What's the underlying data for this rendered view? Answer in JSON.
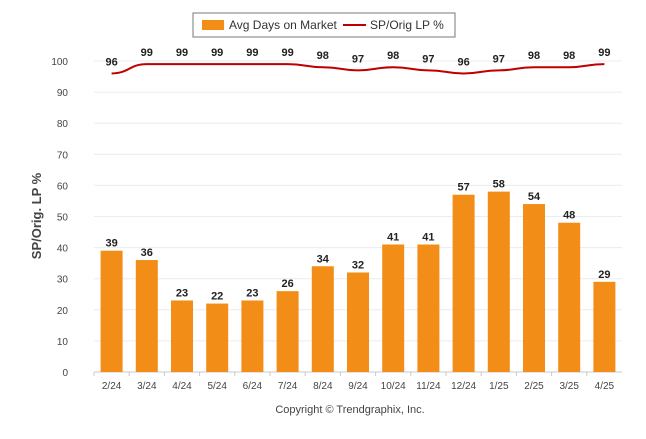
{
  "chart_data": {
    "type": "bar+line",
    "categories": [
      "2/24",
      "3/24",
      "4/24",
      "5/24",
      "6/24",
      "7/24",
      "8/24",
      "9/24",
      "10/24",
      "11/24",
      "12/24",
      "1/25",
      "2/25",
      "3/25",
      "4/25"
    ],
    "series": [
      {
        "name": "Avg Days on Market",
        "type": "bar",
        "color": "#f28e17",
        "values": [
          39,
          36,
          23,
          22,
          23,
          26,
          34,
          32,
          41,
          41,
          57,
          58,
          54,
          48,
          29
        ]
      },
      {
        "name": "SP/Orig LP %",
        "type": "line",
        "color": "#c00000",
        "values": [
          96,
          99,
          99,
          99,
          99,
          99,
          98,
          97,
          98,
          97,
          96,
          97,
          98,
          98,
          99
        ]
      }
    ],
    "ylabel": "SP/Orig. LP %",
    "xlabel": "",
    "ylim": [
      0,
      100
    ],
    "yticks": [
      0,
      10,
      20,
      30,
      40,
      50,
      60,
      70,
      80,
      90,
      100
    ],
    "grid": true,
    "legend_position": "top-center"
  },
  "footer": {
    "copyright": "Copyright © Trendgraphix, Inc."
  }
}
